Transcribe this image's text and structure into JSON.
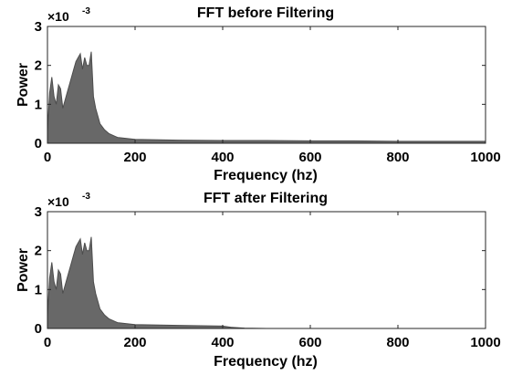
{
  "chart_data": [
    {
      "type": "line",
      "title": "FFT before Filtering",
      "xlabel": "Frequency (hz)",
      "ylabel": "Power",
      "xlim": [
        0,
        1000
      ],
      "ylim": [
        0,
        3
      ],
      "y_multiplier": "×10",
      "y_exponent": "-3",
      "xticks": [
        "0",
        "200",
        "400",
        "600",
        "800",
        "1000"
      ],
      "yticks": [
        "0",
        "1",
        "2",
        "3"
      ],
      "line_color": "#4d4d4d",
      "series": [
        {
          "x": [
            0,
            5,
            10,
            15,
            20,
            25,
            30,
            35,
            40,
            45,
            50,
            55,
            60,
            65,
            70,
            75,
            80,
            85,
            90,
            95,
            100,
            105,
            110,
            115,
            120,
            130,
            140,
            160,
            200,
            300,
            400,
            500,
            600,
            700,
            800,
            900,
            1000
          ],
          "y": [
            0.3,
            1.3,
            1.7,
            1.2,
            1.0,
            1.5,
            1.4,
            0.9,
            1.1,
            1.3,
            1.5,
            1.7,
            1.9,
            2.1,
            2.2,
            2.3,
            1.9,
            2.2,
            2.0,
            2.0,
            2.35,
            1.2,
            0.9,
            0.7,
            0.5,
            0.35,
            0.25,
            0.15,
            0.1,
            0.08,
            0.07,
            0.07,
            0.06,
            0.06,
            0.05,
            0.05,
            0.05
          ]
        }
      ]
    },
    {
      "type": "line",
      "title": "FFT after Filtering",
      "xlabel": "Frequency (hz)",
      "ylabel": "Power",
      "xlim": [
        0,
        1000
      ],
      "ylim": [
        0,
        3
      ],
      "y_multiplier": "×10",
      "y_exponent": "-3",
      "xticks": [
        "0",
        "200",
        "400",
        "600",
        "800",
        "1000"
      ],
      "yticks": [
        "0",
        "1",
        "2",
        "3"
      ],
      "line_color": "#4d4d4d",
      "series": [
        {
          "x": [
            0,
            5,
            10,
            15,
            20,
            25,
            30,
            35,
            40,
            45,
            50,
            55,
            60,
            65,
            70,
            75,
            80,
            85,
            90,
            95,
            100,
            105,
            110,
            115,
            120,
            130,
            140,
            160,
            200,
            300,
            350,
            400,
            420,
            450,
            500,
            600,
            1000
          ],
          "y": [
            0.3,
            1.3,
            1.7,
            1.2,
            1.0,
            1.5,
            1.4,
            0.9,
            1.1,
            1.3,
            1.5,
            1.7,
            1.9,
            2.1,
            2.2,
            2.3,
            1.9,
            2.2,
            2.0,
            2.0,
            2.35,
            1.2,
            0.9,
            0.7,
            0.5,
            0.35,
            0.25,
            0.15,
            0.1,
            0.08,
            0.07,
            0.06,
            0.03,
            0.01,
            0.0,
            0.0,
            0.0
          ]
        }
      ]
    }
  ]
}
